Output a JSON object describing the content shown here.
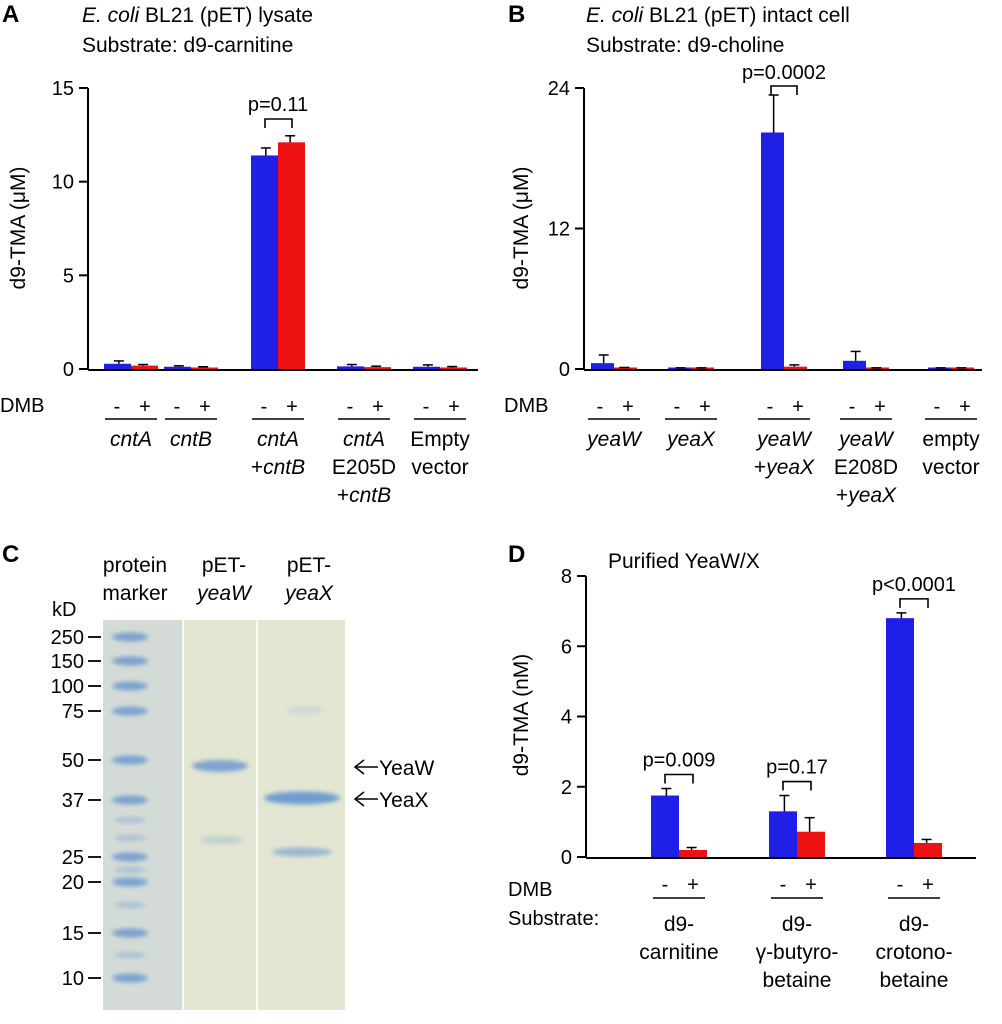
{
  "colors": {
    "minus": "#1f1fe8",
    "plus": "#ee1111",
    "gel_bg": "#e3e6d2",
    "band": "#5d8fcf"
  },
  "dmb_label": "DMB",
  "signs": {
    "minus": "-",
    "plus": "+"
  },
  "panelA": {
    "label": "A",
    "title_italic": "E. coli",
    "title_rest": " BL21 (pET) lysate",
    "subtitle": "Substrate: d9-carnitine",
    "ylabel": "d9-TMA (μM)",
    "ticks": [
      "0",
      "5",
      "10",
      "15"
    ],
    "groups": [
      {
        "label": [
          "cntA"
        ]
      },
      {
        "label": [
          "cntB"
        ]
      },
      {
        "label": [
          "cntA",
          "+cntB"
        ]
      },
      {
        "label": [
          "cntA",
          "E205D",
          "+cntB"
        ]
      },
      {
        "label": [
          "Empty",
          "vector"
        ]
      }
    ],
    "pval": "p=0.11"
  },
  "panelB": {
    "label": "B",
    "title_italic": "E. coli",
    "title_rest": " BL21 (pET) intact cell",
    "subtitle": "Substrate: d9-choline",
    "ylabel": "d9-TMA (μM)",
    "ticks": [
      "0",
      "12",
      "24"
    ],
    "groups": [
      {
        "label": [
          "yeaW"
        ]
      },
      {
        "label": [
          "yeaX"
        ]
      },
      {
        "label": [
          "yeaW",
          "+yeaX"
        ]
      },
      {
        "label": [
          "yeaW",
          "E208D",
          "+yeaX"
        ]
      },
      {
        "label": [
          "empty",
          "vector"
        ]
      }
    ],
    "pval": "p=0.0002"
  },
  "panelC": {
    "label": "C",
    "kd": "kD",
    "lane_headers": [
      [
        "protein",
        "marker"
      ],
      [
        "pET-",
        "yeaW"
      ],
      [
        "pET-",
        "yeaX"
      ]
    ],
    "mw_markers": [
      "250",
      "150",
      "100",
      "75",
      "50",
      "37",
      "25",
      "20",
      "15",
      "10"
    ],
    "annotations": [
      "YeaW",
      "YeaX"
    ]
  },
  "panelD": {
    "label": "D",
    "title": "Purified YeaW/X",
    "ylabel": "d9-TMA (nM)",
    "ticks": [
      "0",
      "2",
      "4",
      "6",
      "8"
    ],
    "substrate_label": "Substrate:",
    "groups": [
      {
        "label": [
          "d9-",
          "carnitine"
        ],
        "pval": "p=0.009"
      },
      {
        "label": [
          "d9-",
          "γ-butyro-",
          "betaine"
        ],
        "pval": "p=0.17"
      },
      {
        "label": [
          "d9-",
          "crotono-",
          "betaine"
        ],
        "pval": "p<0.0001"
      }
    ]
  },
  "chart_data": [
    {
      "type": "bar",
      "panel": "A",
      "title": "E. coli BL21 (pET) lysate — Substrate: d9-carnitine",
      "ylabel": "d9-TMA (μM)",
      "xlabel": "",
      "ylim": [
        0,
        15
      ],
      "categories": [
        "cntA",
        "cntB",
        "cntA+cntB",
        "cntA E205D+cntB",
        "Empty vector"
      ],
      "series": [
        {
          "name": "DMB -",
          "values": [
            0.28,
            0.12,
            11.4,
            0.14,
            0.12
          ],
          "errors": [
            0.15,
            0.05,
            0.4,
            0.1,
            0.1
          ]
        },
        {
          "name": "DMB +",
          "values": [
            0.18,
            0.08,
            12.1,
            0.1,
            0.08
          ],
          "errors": [
            0.06,
            0.04,
            0.35,
            0.05,
            0.05
          ]
        }
      ]
    },
    {
      "type": "bar",
      "panel": "B",
      "title": "E. coli BL21 (pET) intact cell — Substrate: d9-choline",
      "ylabel": "d9-TMA (μM)",
      "xlabel": "",
      "ylim": [
        0,
        24
      ],
      "categories": [
        "yeaW",
        "yeaX",
        "yeaW+yeaX",
        "yeaW E208D+yeaX",
        "empty vector"
      ],
      "series": [
        {
          "name": "DMB -",
          "values": [
            0.5,
            0.05,
            20.2,
            0.7,
            0.05
          ],
          "errors": [
            0.7,
            0.05,
            3.2,
            0.8,
            0.05
          ]
        },
        {
          "name": "DMB +",
          "values": [
            0.08,
            0.05,
            0.2,
            0.05,
            0.05
          ],
          "errors": [
            0.05,
            0.05,
            0.15,
            0.05,
            0.05
          ]
        }
      ]
    },
    {
      "type": "bar",
      "panel": "D",
      "title": "Purified YeaW/X",
      "ylabel": "d9-TMA (nM)",
      "xlabel": "Substrate",
      "ylim": [
        0,
        8
      ],
      "categories": [
        "d9-carnitine",
        "d9-γ-butyrobetaine",
        "d9-crotonobetaine"
      ],
      "series": [
        {
          "name": "DMB -",
          "values": [
            1.75,
            1.3,
            6.8
          ],
          "errors": [
            0.2,
            0.45,
            0.15
          ]
        },
        {
          "name": "DMB +",
          "values": [
            0.2,
            0.72,
            0.4
          ],
          "errors": [
            0.07,
            0.4,
            0.1
          ]
        }
      ]
    }
  ]
}
